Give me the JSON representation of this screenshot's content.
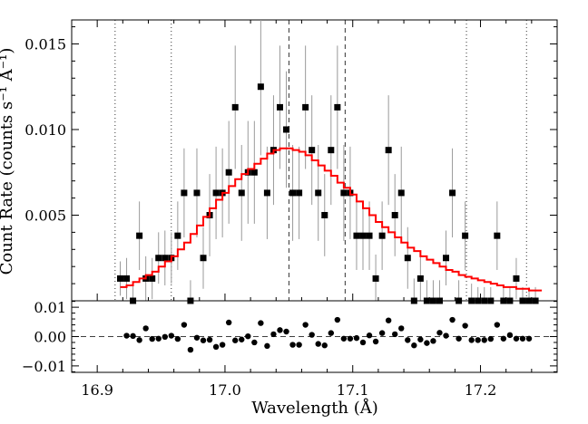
{
  "chart_data": [
    {
      "type": "scatter",
      "panel": "top",
      "title": "",
      "xlabel": "",
      "ylabel": "Count Rate (counts s⁻¹ Å⁻¹)",
      "xlim": [
        16.88,
        17.26
      ],
      "ylim": [
        0.0,
        0.0164
      ],
      "yticks": [
        {
          "v": 0.005,
          "label": "0.005"
        },
        {
          "v": 0.01,
          "label": "0.010"
        },
        {
          "v": 0.015,
          "label": "0.015"
        }
      ],
      "series": [
        {
          "kind": "data-with-errorbars",
          "points": [
            [
              16.918,
              0.0013,
              0.001
            ],
            [
              16.923,
              0.0013,
              0.0012
            ],
            [
              16.928,
              0.0,
              0.0011
            ],
            [
              16.933,
              0.0038,
              0.002
            ],
            [
              16.938,
              0.0013,
              0.0013
            ],
            [
              16.943,
              0.0013,
              0.0012
            ],
            [
              16.948,
              0.0025,
              0.0015
            ],
            [
              16.953,
              0.0025,
              0.0016
            ],
            [
              16.958,
              0.0025,
              0.0015
            ],
            [
              16.963,
              0.0038,
              0.002
            ],
            [
              16.968,
              0.0063,
              0.0026
            ],
            [
              16.973,
              0.0,
              0.0012
            ],
            [
              16.978,
              0.0063,
              0.0026
            ],
            [
              16.983,
              0.0025,
              0.0018
            ],
            [
              16.988,
              0.005,
              0.0024
            ],
            [
              16.993,
              0.0063,
              0.0027
            ],
            [
              16.998,
              0.0063,
              0.0026
            ],
            [
              17.003,
              0.0075,
              0.003
            ],
            [
              17.008,
              0.0113,
              0.0036
            ],
            [
              17.013,
              0.0063,
              0.0028
            ],
            [
              17.018,
              0.0075,
              0.003
            ],
            [
              17.023,
              0.0075,
              0.003
            ],
            [
              17.028,
              0.0125,
              0.004
            ],
            [
              17.033,
              0.0063,
              0.0027
            ],
            [
              17.038,
              0.0088,
              0.0032
            ],
            [
              17.043,
              0.0113,
              0.0036
            ],
            [
              17.048,
              0.01,
              0.0034
            ],
            [
              17.053,
              0.0063,
              0.0028
            ],
            [
              17.058,
              0.0063,
              0.0027
            ],
            [
              17.063,
              0.0113,
              0.0036
            ],
            [
              17.068,
              0.0088,
              0.0032
            ],
            [
              17.073,
              0.0063,
              0.0028
            ],
            [
              17.078,
              0.005,
              0.0024
            ],
            [
              17.083,
              0.0088,
              0.0032
            ],
            [
              17.088,
              0.0113,
              0.0036
            ],
            [
              17.093,
              0.0063,
              0.0028
            ],
            [
              17.098,
              0.0063,
              0.0027
            ],
            [
              17.103,
              0.0038,
              0.002
            ],
            [
              17.108,
              0.0038,
              0.002
            ],
            [
              17.113,
              0.0038,
              0.002
            ],
            [
              17.118,
              0.0013,
              0.0014
            ],
            [
              17.123,
              0.0038,
              0.002
            ],
            [
              17.128,
              0.0088,
              0.0032
            ],
            [
              17.133,
              0.005,
              0.0024
            ],
            [
              17.138,
              0.0063,
              0.0027
            ],
            [
              17.143,
              0.0025,
              0.0018
            ],
            [
              17.148,
              0.0,
              0.0013
            ],
            [
              17.153,
              0.0013,
              0.0013
            ],
            [
              17.158,
              0.0,
              0.0012
            ],
            [
              17.163,
              0.0,
              0.0012
            ],
            [
              17.168,
              0.0,
              0.0012
            ],
            [
              17.173,
              0.0025,
              0.0016
            ],
            [
              17.178,
              0.0063,
              0.0026
            ],
            [
              17.183,
              0.0,
              0.0012
            ],
            [
              17.188,
              0.0038,
              0.002
            ],
            [
              17.193,
              0.0,
              0.001
            ],
            [
              17.198,
              0.0,
              0.0008
            ],
            [
              17.203,
              0.0,
              0.0008
            ],
            [
              17.208,
              0.0,
              0.0008
            ],
            [
              17.213,
              0.0038,
              0.002
            ],
            [
              17.218,
              0.0,
              0.0008
            ],
            [
              17.223,
              0.0,
              0.0008
            ],
            [
              17.228,
              0.0013,
              0.0012
            ],
            [
              17.233,
              0.0,
              0.0008
            ],
            [
              17.238,
              0.0,
              0.0008
            ],
            [
              17.243,
              0.0,
              0.0008
            ]
          ]
        },
        {
          "kind": "model-step",
          "color": "#ff0000",
          "x_start": 16.918,
          "x_end": 17.248,
          "values": [
            0.0008,
            0.0009,
            0.0011,
            0.0013,
            0.0015,
            0.0017,
            0.002,
            0.0023,
            0.0026,
            0.003,
            0.0034,
            0.0039,
            0.0044,
            0.0049,
            0.0054,
            0.0059,
            0.0063,
            0.0067,
            0.0071,
            0.0074,
            0.0077,
            0.008,
            0.0083,
            0.0086,
            0.0088,
            0.0089,
            0.0089,
            0.0088,
            0.0087,
            0.0085,
            0.0082,
            0.0079,
            0.0076,
            0.0073,
            0.0069,
            0.0066,
            0.0062,
            0.0058,
            0.0054,
            0.005,
            0.0046,
            0.0043,
            0.004,
            0.0037,
            0.0034,
            0.0031,
            0.0029,
            0.0026,
            0.0024,
            0.0022,
            0.002,
            0.0018,
            0.0017,
            0.0015,
            0.0014,
            0.0013,
            0.0012,
            0.0011,
            0.001,
            0.0009,
            0.0008,
            0.0008,
            0.0007,
            0.0007,
            0.0006,
            0.0006
          ]
        }
      ],
      "reference_lines": {
        "dotted": [
          16.914,
          16.958,
          17.189,
          17.236
        ],
        "dashed": [
          17.05,
          17.094
        ]
      }
    },
    {
      "type": "scatter",
      "panel": "bottom",
      "xlabel": "Wavelength (Å)",
      "ylabel": "",
      "xlim": [
        16.88,
        17.26
      ],
      "ylim": [
        -0.0122,
        0.0122
      ],
      "xticks": [
        {
          "v": 16.9,
          "label": "16.9"
        },
        {
          "v": 17.0,
          "label": "17.0"
        },
        {
          "v": 17.1,
          "label": "17.1"
        },
        {
          "v": 17.2,
          "label": "17.2"
        }
      ],
      "yticks": [
        {
          "v": -0.01,
          "label": "−0.01"
        },
        {
          "v": 0.0,
          "label": "0.00"
        },
        {
          "v": 0.01,
          "label": "0.01"
        }
      ],
      "zero_line": "dashed",
      "residuals": [
        [
          16.923,
          0.0003
        ],
        [
          16.928,
          0.0002
        ],
        [
          16.933,
          -0.0012
        ],
        [
          16.938,
          0.0028
        ],
        [
          16.943,
          -0.0008
        ],
        [
          16.948,
          -0.0007
        ],
        [
          16.953,
          -0.0001
        ],
        [
          16.958,
          0.0003
        ],
        [
          16.963,
          -0.0008
        ],
        [
          16.968,
          0.004
        ],
        [
          16.973,
          -0.0045
        ],
        [
          16.978,
          -0.0004
        ],
        [
          16.983,
          -0.0013
        ],
        [
          16.988,
          -0.0011
        ],
        [
          16.993,
          -0.0035
        ],
        [
          16.998,
          -0.0028
        ],
        [
          17.003,
          0.0048
        ],
        [
          17.008,
          -0.0013
        ],
        [
          17.013,
          -0.001
        ],
        [
          17.018,
          0.0001
        ],
        [
          17.023,
          -0.002
        ],
        [
          17.028,
          0.0046
        ],
        [
          17.033,
          -0.0032
        ],
        [
          17.038,
          0.0008
        ],
        [
          17.043,
          0.0022
        ],
        [
          17.048,
          0.0017
        ],
        [
          17.053,
          -0.0028
        ],
        [
          17.058,
          -0.0028
        ],
        [
          17.063,
          0.004
        ],
        [
          17.068,
          0.0006
        ],
        [
          17.073,
          -0.0025
        ],
        [
          17.078,
          -0.003
        ],
        [
          17.083,
          0.0012
        ],
        [
          17.088,
          0.0057
        ],
        [
          17.093,
          -0.0007
        ],
        [
          17.098,
          -0.0007
        ],
        [
          17.103,
          -0.0005
        ],
        [
          17.108,
          -0.002
        ],
        [
          17.113,
          0.0004
        ],
        [
          17.118,
          -0.0017
        ],
        [
          17.123,
          0.0012
        ],
        [
          17.128,
          0.0055
        ],
        [
          17.133,
          0.0008
        ],
        [
          17.138,
          0.0028
        ],
        [
          17.143,
          -0.0012
        ],
        [
          17.148,
          -0.003
        ],
        [
          17.153,
          -0.001
        ],
        [
          17.158,
          -0.0022
        ],
        [
          17.163,
          -0.0015
        ],
        [
          17.168,
          0.0013
        ],
        [
          17.173,
          0.0003
        ],
        [
          17.178,
          0.0057
        ],
        [
          17.183,
          -0.0007
        ],
        [
          17.188,
          0.0037
        ],
        [
          17.193,
          -0.0012
        ],
        [
          17.198,
          -0.0012
        ],
        [
          17.203,
          -0.0012
        ],
        [
          17.208,
          -0.0008
        ],
        [
          17.213,
          0.004
        ],
        [
          17.218,
          -0.0007
        ],
        [
          17.223,
          0.0005
        ],
        [
          17.228,
          -0.0007
        ],
        [
          17.233,
          -0.0007
        ],
        [
          17.238,
          -0.0007
        ]
      ]
    }
  ]
}
